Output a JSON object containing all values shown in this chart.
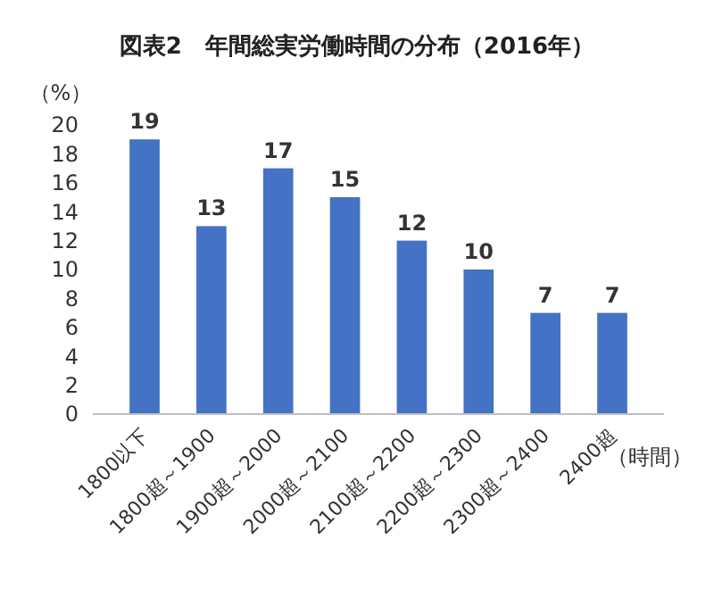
{
  "chart_data": {
    "type": "bar",
    "title": "図表2　年間総実労働時間の分布（2016年）",
    "ylabel": "（%）",
    "xlabel": "（時間）",
    "categories": [
      "1800以下",
      "1800超～1900",
      "1900超～2000",
      "2000超～2100",
      "2100超～2200",
      "2200超～2300",
      "2300超～2400",
      "2400超"
    ],
    "values": [
      19,
      13,
      17,
      15,
      12,
      10,
      7,
      7
    ],
    "color": "#4472c4",
    "ylim": [
      0,
      20
    ],
    "yticks": [
      0,
      2,
      4,
      6,
      8,
      10,
      12,
      14,
      16,
      18,
      20
    ],
    "data_labels": true
  }
}
